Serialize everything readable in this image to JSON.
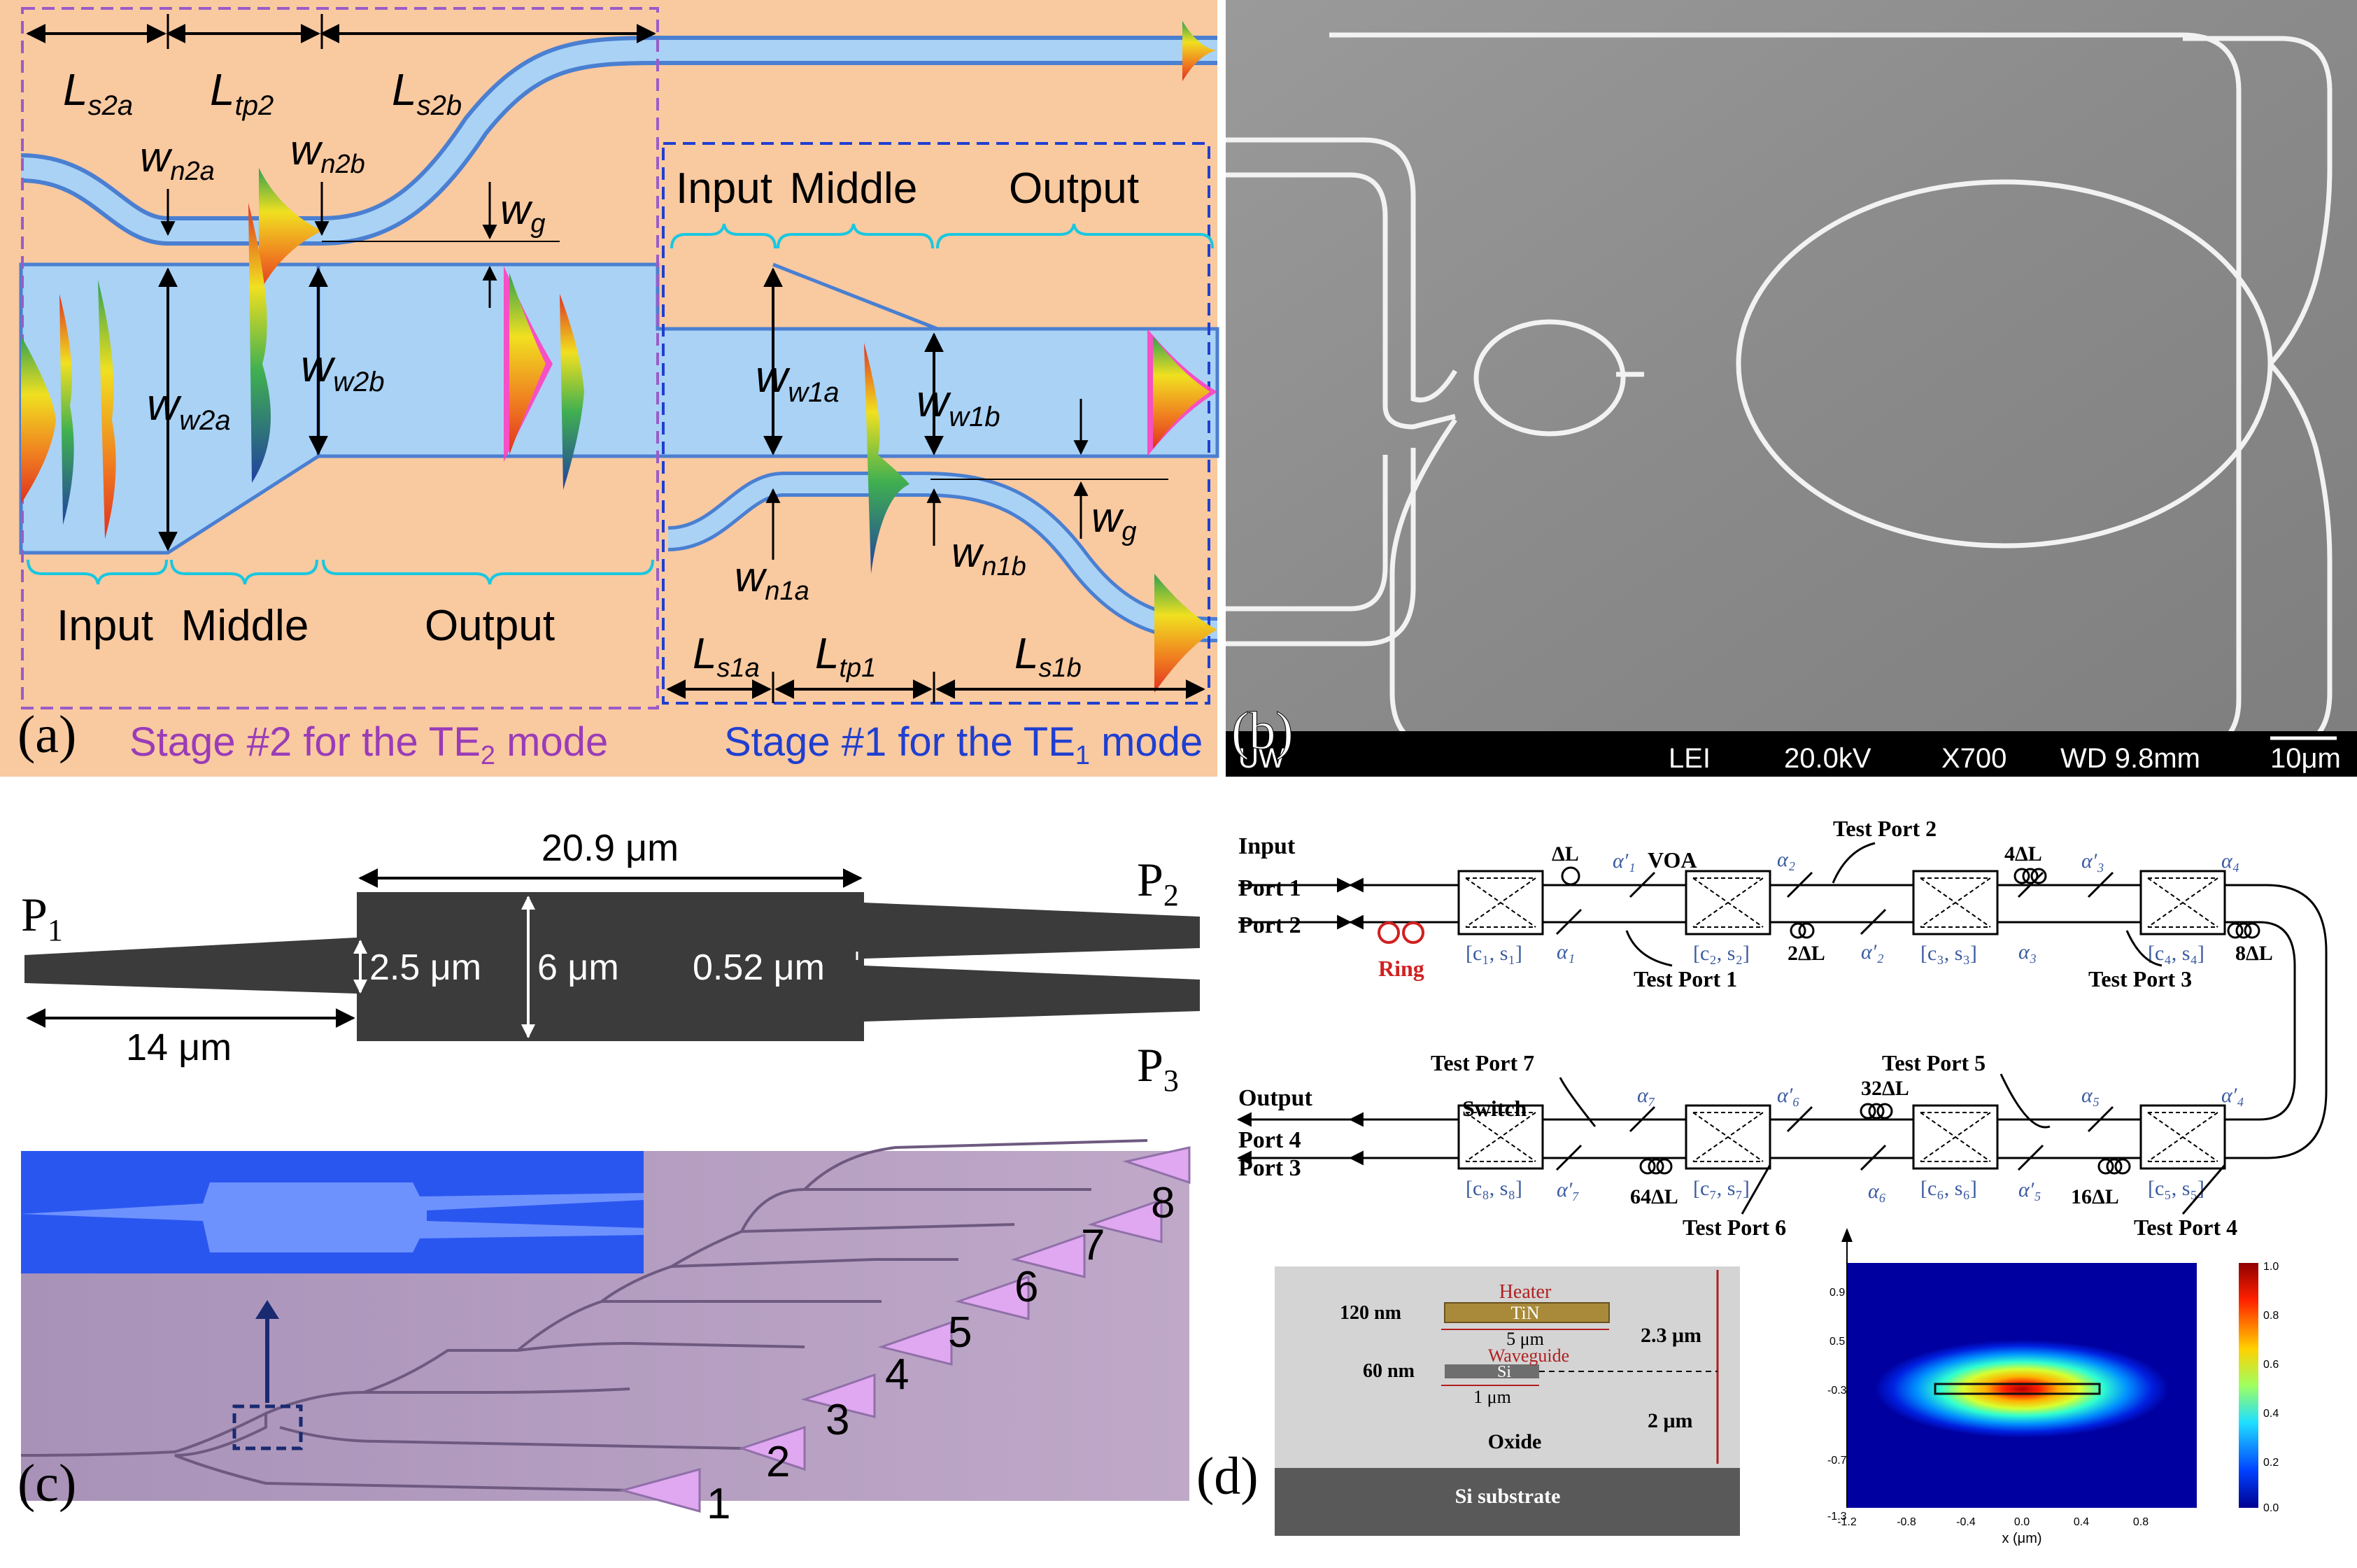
{
  "panel_a": {
    "label": "(a)",
    "dims_stage2": {
      "ls2a": "s2a",
      "ltp2": "tp2",
      "ls2b": "s2b",
      "wn2a": "n2a",
      "wn2b": "n2b",
      "wg": "g",
      "ww2a": "w2a",
      "ww2b": "w2b"
    },
    "dims_stage1": {
      "ww1a": "w1a",
      "ww1b": "w1b",
      "wn1a": "n1a",
      "wn1b": "n1b",
      "wg": "g",
      "ls1a": "s1a",
      "ltp1": "tp1",
      "ls1b": "s1b"
    },
    "stage1_sections": [
      "Input",
      "Middle",
      "Output"
    ],
    "stage2_sections": [
      "Input",
      "Middle",
      "Output"
    ],
    "stage2_caption": {
      "prefix": "Stage #2 for the TE",
      "sub": "2",
      "suffix": " mode"
    },
    "stage1_caption": {
      "prefix": "Stage #1 for the TE",
      "sub": "1",
      "suffix": " mode"
    },
    "colors": {
      "background": "#f9c9a0",
      "waveguide": "#a9d2f5",
      "edge": "#4a7fd1",
      "stage2_box": "#9a5cc8",
      "stage1_box": "#1f3fd0"
    }
  },
  "panel_b": {
    "label": "(b)",
    "sem_bar": {
      "left": "UW",
      "detector": "LEI",
      "voltage": "20.0kV",
      "mag": "X700",
      "wd": "WD 9.8mm",
      "scale": "10μm"
    }
  },
  "panel_c": {
    "label": "(c)",
    "dims": {
      "length_main": "20.9 μm",
      "width_in": "2.5 μm",
      "width_mid": "6 μm",
      "gap": "0.52 μm",
      "taper_len": "14 μm"
    },
    "ports": {
      "p1": "P",
      "p1_sub": "1",
      "p2": "P",
      "p2_sub": "2",
      "p3": "P",
      "p3_sub": "3"
    },
    "outputs": [
      "1",
      "2",
      "3",
      "4",
      "5",
      "6",
      "7",
      "8"
    ]
  },
  "panel_d": {
    "label": "(d)",
    "circuit": {
      "input_title": "Input",
      "port1": "Port 1",
      "port2": "Port 2",
      "ring": "Ring",
      "output_title": "Output",
      "port4": "Port 4",
      "port3": "Port 3",
      "switch": "Switch",
      "voa": "VOA",
      "couplers": [
        "[c₁, s₁]",
        "[c₂, s₂]",
        "[c₃, s₃]",
        "[c₄, s₄]",
        "[c₅, s₅]",
        "[c₆, s₆]",
        "[c₇, s₇]",
        "[c₈, s₈]"
      ],
      "delays": [
        "ΔL",
        "2ΔL",
        "4ΔL",
        "8ΔL",
        "16ΔL",
        "32ΔL",
        "64ΔL"
      ],
      "alphas_top": [
        "α′₁",
        "α₁",
        "α₂",
        "α′₂",
        "α′₃",
        "α₃",
        "α₄"
      ],
      "alphas_bottom": [
        "α₇",
        "α′₇",
        "α′₆",
        "α₆",
        "α′₅",
        "α₅",
        "α′₄"
      ],
      "test_ports": [
        "Test Port 1",
        "Test Port 2",
        "Test Port 3",
        "Test Port 4",
        "Test Port 5",
        "Test Port 6",
        "Test Port 7"
      ]
    },
    "cross_section": {
      "heater": "Heater",
      "tin": "TiN",
      "heater_w": "5 μm",
      "waveguide": "Waveguide",
      "si": "Si",
      "wg_w": "1 μm",
      "t_heater": "120 nm",
      "t_si": "60 nm",
      "gap_top": "2.3 μm",
      "gap_bottom": "2 μm",
      "oxide": "Oxide",
      "substrate": "Si substrate"
    },
    "mode_plot": {
      "xlabel": "x (μm)",
      "xticks": [
        "-1.2",
        "-0.8",
        "-0.4",
        "0.0",
        "0.4",
        "0.8"
      ],
      "yticks": [
        "0.9",
        "0.5",
        "-0.3",
        "-0.7",
        "-1.3"
      ],
      "colorbar": [
        "1.0",
        "0.8",
        "0.6",
        "0.4",
        "0.2",
        "0.0"
      ]
    }
  }
}
